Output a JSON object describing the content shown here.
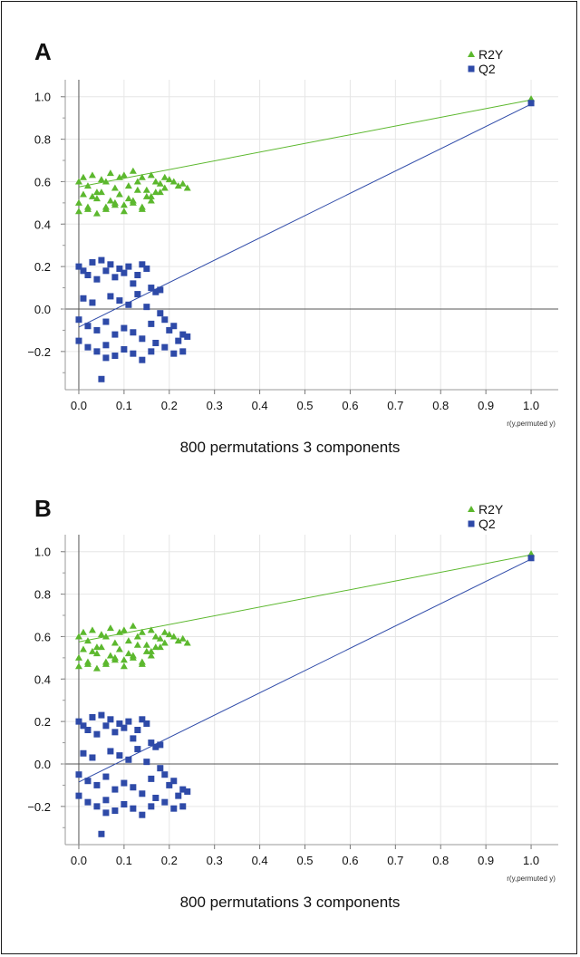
{
  "panels": [
    {
      "letter": "A",
      "caption": "800 permutations 3 components"
    },
    {
      "letter": "B",
      "caption": "800 permutations 3 components"
    }
  ],
  "chart_data": [
    {
      "type": "scatter",
      "xlabel": "r(y,permuted y)",
      "ylabel": "",
      "xlim": [
        -0.03,
        1.06
      ],
      "ylim": [
        -0.38,
        1.08
      ],
      "xticks": [
        "0.0",
        "0.1",
        "0.2",
        "0.3",
        "0.4",
        "0.5",
        "0.6",
        "0.7",
        "0.8",
        "0.9",
        "1.0"
      ],
      "yticks": [
        "1.0",
        "0.8",
        "0.6",
        "0.4",
        "0.2",
        "0.0",
        "−0.2"
      ],
      "ytick_values": [
        1.0,
        0.8,
        0.6,
        0.4,
        0.2,
        0.0,
        -0.2
      ],
      "grid": true,
      "legend": "top-right",
      "series": [
        {
          "name": "R2Y",
          "color": "#5cb82e",
          "marker": "triangle",
          "x": [
            0.0,
            0.01,
            0.02,
            0.03,
            0.04,
            0.05,
            0.06,
            0.07,
            0.08,
            0.09,
            0.1,
            0.11,
            0.12,
            0.13,
            0.14,
            0.15,
            0.16,
            0.17,
            0.18,
            0.19,
            0.2,
            0.21,
            0.22,
            0.23,
            0.24,
            0.0,
            0.02,
            0.04,
            0.06,
            0.08,
            0.1,
            0.12,
            0.14,
            0.16,
            0.18,
            0.01,
            0.03,
            0.05,
            0.07,
            0.09,
            0.11,
            0.13,
            0.15,
            0.17,
            0.19,
            0.0,
            0.02,
            0.04,
            0.06,
            0.08,
            0.1,
            0.12,
            0.14,
            0.16,
            1.0
          ],
          "y": [
            0.6,
            0.62,
            0.58,
            0.63,
            0.55,
            0.61,
            0.6,
            0.64,
            0.57,
            0.62,
            0.63,
            0.58,
            0.65,
            0.6,
            0.62,
            0.56,
            0.63,
            0.6,
            0.59,
            0.62,
            0.61,
            0.6,
            0.58,
            0.59,
            0.57,
            0.5,
            0.48,
            0.52,
            0.47,
            0.5,
            0.49,
            0.51,
            0.48,
            0.53,
            0.55,
            0.54,
            0.53,
            0.55,
            0.51,
            0.54,
            0.52,
            0.56,
            0.53,
            0.55,
            0.57,
            0.46,
            0.47,
            0.45,
            0.48,
            0.49,
            0.46,
            0.5,
            0.47,
            0.51,
            0.99
          ],
          "fit": {
            "x": [
              0.0,
              1.0
            ],
            "y": [
              0.575,
              0.985
            ]
          }
        },
        {
          "name": "Q2",
          "color": "#2e4aa8",
          "marker": "square",
          "x": [
            0.0,
            0.01,
            0.02,
            0.03,
            0.04,
            0.05,
            0.06,
            0.07,
            0.08,
            0.09,
            0.1,
            0.11,
            0.12,
            0.13,
            0.14,
            0.15,
            0.16,
            0.17,
            0.18,
            0.0,
            0.02,
            0.04,
            0.06,
            0.08,
            0.1,
            0.12,
            0.14,
            0.16,
            0.0,
            0.02,
            0.04,
            0.06,
            0.08,
            0.1,
            0.12,
            0.14,
            0.16,
            0.18,
            0.19,
            0.2,
            0.21,
            0.22,
            0.23,
            0.24,
            0.19,
            0.21,
            0.23,
            0.05,
            0.01,
            0.03,
            0.07,
            0.09,
            0.11,
            0.13,
            0.15,
            0.17,
            0.06,
            1.0
          ],
          "y": [
            0.2,
            0.18,
            0.16,
            0.22,
            0.14,
            0.23,
            0.18,
            0.21,
            0.15,
            0.19,
            0.17,
            0.2,
            0.12,
            0.16,
            0.21,
            0.19,
            0.1,
            0.08,
            0.09,
            -0.15,
            -0.18,
            -0.2,
            -0.17,
            -0.22,
            -0.19,
            -0.21,
            -0.24,
            -0.2,
            -0.05,
            -0.08,
            -0.1,
            -0.06,
            -0.12,
            -0.09,
            -0.11,
            -0.14,
            -0.07,
            -0.02,
            -0.05,
            -0.1,
            -0.08,
            -0.15,
            -0.12,
            -0.13,
            -0.18,
            -0.21,
            -0.2,
            -0.33,
            0.05,
            0.03,
            0.06,
            0.04,
            0.02,
            0.07,
            0.01,
            -0.16,
            -0.23,
            0.97
          ],
          "fit": {
            "x": [
              0.0,
              1.0
            ],
            "y": [
              -0.085,
              0.965
            ]
          }
        }
      ]
    },
    {
      "type": "scatter",
      "xlabel": "r(y,permuted y)",
      "ylabel": "",
      "xlim": [
        -0.03,
        1.06
      ],
      "ylim": [
        -0.38,
        1.08
      ],
      "xticks": [
        "0.0",
        "0.1",
        "0.2",
        "0.3",
        "0.4",
        "0.5",
        "0.6",
        "0.7",
        "0.8",
        "0.9",
        "1.0"
      ],
      "yticks": [
        "1.0",
        "0.8",
        "0.6",
        "0.4",
        "0.2",
        "0.0",
        "−0.2"
      ],
      "ytick_values": [
        1.0,
        0.8,
        0.6,
        0.4,
        0.2,
        0.0,
        -0.2
      ],
      "grid": true,
      "legend": "top-right",
      "series": [
        {
          "name": "R2Y",
          "color": "#5cb82e",
          "marker": "triangle",
          "x": [
            0.0,
            0.01,
            0.02,
            0.03,
            0.04,
            0.05,
            0.06,
            0.07,
            0.08,
            0.09,
            0.1,
            0.11,
            0.12,
            0.13,
            0.14,
            0.15,
            0.16,
            0.17,
            0.18,
            0.19,
            0.2,
            0.21,
            0.22,
            0.23,
            0.24,
            0.0,
            0.02,
            0.04,
            0.06,
            0.08,
            0.1,
            0.12,
            0.14,
            0.16,
            0.18,
            0.01,
            0.03,
            0.05,
            0.07,
            0.09,
            0.11,
            0.13,
            0.15,
            0.17,
            0.19,
            0.0,
            0.02,
            0.04,
            0.06,
            0.08,
            0.1,
            0.12,
            0.14,
            0.16,
            1.0
          ],
          "y": [
            0.6,
            0.62,
            0.58,
            0.63,
            0.55,
            0.61,
            0.6,
            0.64,
            0.57,
            0.62,
            0.63,
            0.58,
            0.65,
            0.6,
            0.62,
            0.56,
            0.63,
            0.6,
            0.59,
            0.62,
            0.61,
            0.6,
            0.58,
            0.59,
            0.57,
            0.5,
            0.48,
            0.52,
            0.47,
            0.5,
            0.49,
            0.51,
            0.48,
            0.53,
            0.55,
            0.54,
            0.53,
            0.55,
            0.51,
            0.54,
            0.52,
            0.56,
            0.53,
            0.55,
            0.57,
            0.46,
            0.47,
            0.45,
            0.48,
            0.49,
            0.46,
            0.5,
            0.47,
            0.51,
            0.99
          ],
          "fit": {
            "x": [
              0.0,
              1.0
            ],
            "y": [
              0.575,
              0.985
            ]
          }
        },
        {
          "name": "Q2",
          "color": "#2e4aa8",
          "marker": "square",
          "x": [
            0.0,
            0.01,
            0.02,
            0.03,
            0.04,
            0.05,
            0.06,
            0.07,
            0.08,
            0.09,
            0.1,
            0.11,
            0.12,
            0.13,
            0.14,
            0.15,
            0.16,
            0.17,
            0.18,
            0.0,
            0.02,
            0.04,
            0.06,
            0.08,
            0.1,
            0.12,
            0.14,
            0.16,
            0.0,
            0.02,
            0.04,
            0.06,
            0.08,
            0.1,
            0.12,
            0.14,
            0.16,
            0.18,
            0.19,
            0.2,
            0.21,
            0.22,
            0.23,
            0.24,
            0.19,
            0.21,
            0.23,
            0.05,
            0.01,
            0.03,
            0.07,
            0.09,
            0.11,
            0.13,
            0.15,
            0.17,
            0.06,
            1.0
          ],
          "y": [
            0.2,
            0.18,
            0.16,
            0.22,
            0.14,
            0.23,
            0.18,
            0.21,
            0.15,
            0.19,
            0.17,
            0.2,
            0.12,
            0.16,
            0.21,
            0.19,
            0.1,
            0.08,
            0.09,
            -0.15,
            -0.18,
            -0.2,
            -0.17,
            -0.22,
            -0.19,
            -0.21,
            -0.24,
            -0.2,
            -0.05,
            -0.08,
            -0.1,
            -0.06,
            -0.12,
            -0.09,
            -0.11,
            -0.14,
            -0.07,
            -0.02,
            -0.05,
            -0.1,
            -0.08,
            -0.15,
            -0.12,
            -0.13,
            -0.18,
            -0.21,
            -0.2,
            -0.33,
            0.05,
            0.03,
            0.06,
            0.04,
            0.02,
            0.07,
            0.01,
            -0.16,
            -0.23,
            0.97
          ],
          "fit": {
            "x": [
              0.0,
              1.0
            ],
            "y": [
              -0.085,
              0.965
            ]
          }
        }
      ]
    }
  ]
}
